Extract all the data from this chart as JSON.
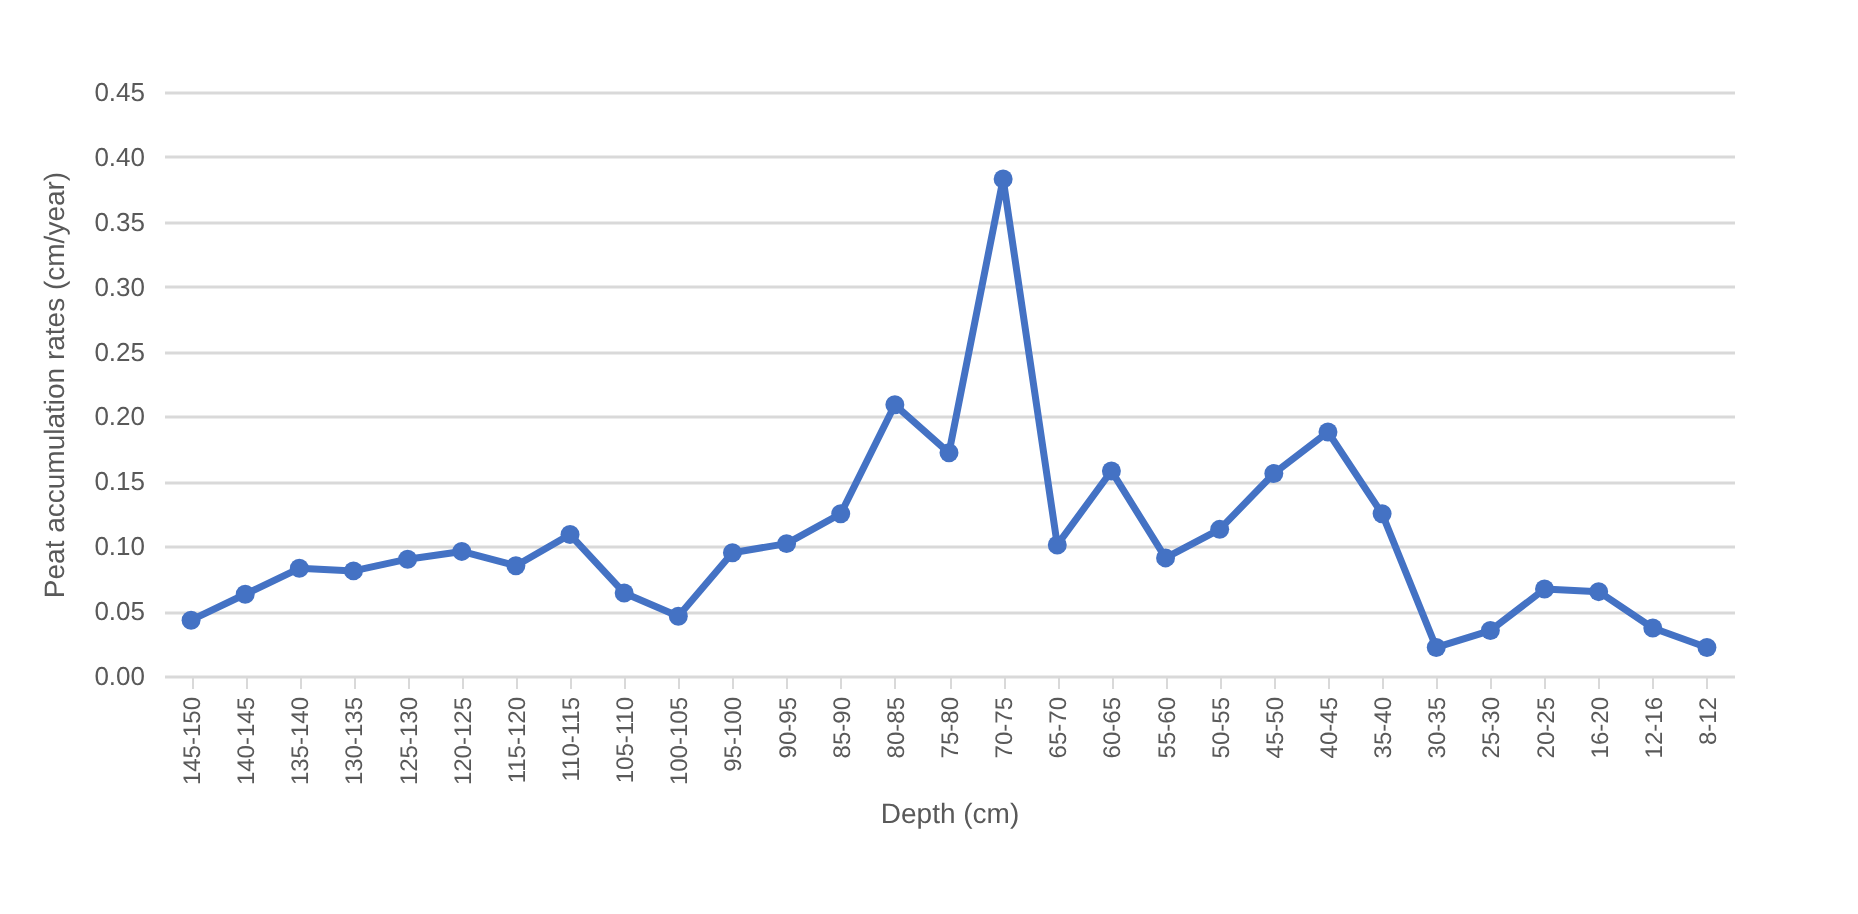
{
  "chart_data": {
    "type": "line",
    "xlabel": "Depth (cm)",
    "ylabel": "Peat accumulation rates (cm/year)",
    "categories": [
      "145-150",
      "140-145",
      "135-140",
      "130-135",
      "125-130",
      "120-125",
      "115-120",
      "110-115",
      "105-110",
      "100-105",
      "95-100",
      "90-95",
      "85-90",
      "80-85",
      "75-80",
      "70-75",
      "65-70",
      "60-65",
      "55-60",
      "50-55",
      "45-50",
      "40-45",
      "35-40",
      "30-35",
      "25-30",
      "20-25",
      "16-20",
      "12-16",
      "8-12"
    ],
    "series": [
      {
        "color": "#4472c4",
        "values": [
          0.043,
          0.063,
          0.083,
          0.081,
          0.09,
          0.096,
          0.085,
          0.109,
          0.064,
          0.046,
          0.095,
          0.102,
          0.125,
          0.209,
          0.172,
          0.383,
          0.101,
          0.158,
          0.091,
          0.113,
          0.156,
          0.188,
          0.125,
          0.022,
          0.035,
          0.067,
          0.065,
          0.037,
          0.022
        ]
      }
    ],
    "ylim": [
      0,
      0.45
    ],
    "yticks": [
      {
        "value": 0,
        "label": "0.00"
      },
      {
        "value": 0.05,
        "label": "0.05"
      },
      {
        "value": 0.1,
        "label": "0.10"
      },
      {
        "value": 0.15,
        "label": "0.15"
      },
      {
        "value": 0.2,
        "label": "0.20"
      },
      {
        "value": 0.25,
        "label": "0.25"
      },
      {
        "value": 0.3,
        "label": "0.30"
      },
      {
        "value": 0.35,
        "label": "0.35"
      },
      {
        "value": 0.4,
        "label": "0.40"
      },
      {
        "value": 0.45,
        "label": "0.45"
      }
    ],
    "grid": "y",
    "marker": "circle",
    "line_style": "solid"
  }
}
